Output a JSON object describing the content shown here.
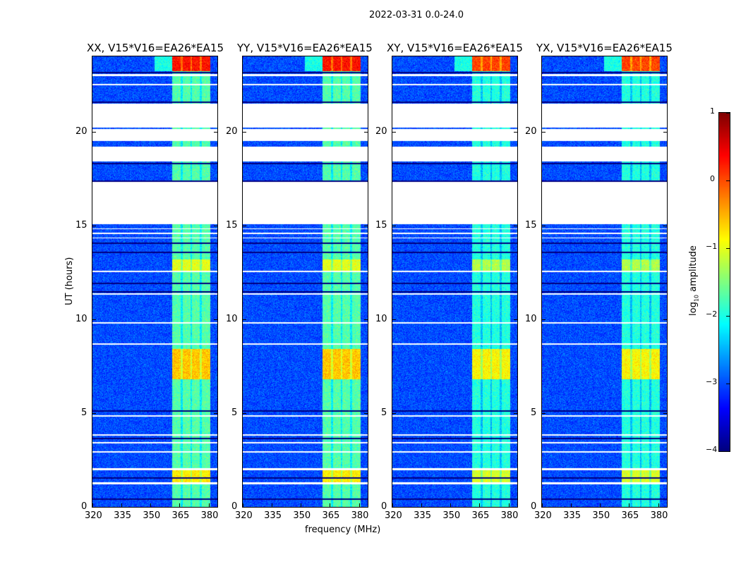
{
  "chart_data": {
    "type": "heatmap",
    "title": "2022-03-31 0.0-24.0",
    "xlabel": "frequency (MHz)",
    "ylabel": "UT (hours)",
    "xlim": [
      320,
      384.5
    ],
    "ylim": [
      0,
      24
    ],
    "xticks": [
      "320",
      "335",
      "350",
      "365",
      "380"
    ],
    "xtick_values": [
      320,
      335,
      350,
      365,
      380
    ],
    "yticks": [
      "0",
      "5",
      "10",
      "15",
      "20"
    ],
    "ytick_values": [
      0,
      5,
      10,
      15,
      20
    ],
    "panels": [
      {
        "title": "XX, V15*V16=EA26*EA15"
      },
      {
        "title": "YY, V15*V16=EA26*EA15"
      },
      {
        "title": "XY, V15*V16=EA26*EA15"
      },
      {
        "title": "YX, V15*V16=EA26*EA15"
      }
    ],
    "colorbar": {
      "label": "log10 amplitude",
      "label_main": "log",
      "label_sub": "10",
      "label_rest": " amplitude",
      "range": [
        -4,
        1
      ],
      "ticks": [
        "1",
        "0",
        "−1",
        "−2",
        "−3",
        "−4"
      ],
      "tick_values": [
        1,
        0,
        -1,
        -2,
        -3,
        -4
      ],
      "colormap": "jet"
    },
    "baseline_log_amp": -3.0,
    "rfi_band_mhz": [
      361,
      381
    ],
    "rfi_subband_edges_mhz": [
      366,
      371,
      376
    ],
    "rfi_levels": [
      {
        "hours": [
          23.2,
          24.0
        ],
        "log_amp": 0.3
      },
      {
        "hours": [
          6.8,
          8.4
        ],
        "log_amp": -0.6
      },
      {
        "hours": [
          1.3,
          2.0
        ],
        "log_amp": -0.8
      },
      {
        "hours": [
          12.6,
          13.2
        ],
        "log_amp": -1.0
      },
      {
        "hours": [
          0.0,
          24.0
        ],
        "log_amp": -1.7
      }
    ],
    "flagged_hours": [
      [
        22.95,
        23.05
      ],
      [
        22.45,
        22.55
      ],
      [
        20.2,
        21.5
      ],
      [
        19.5,
        20.15
      ],
      [
        18.4,
        19.2
      ],
      [
        15.05,
        17.3
      ],
      [
        14.8,
        14.85
      ],
      [
        14.55,
        14.6
      ],
      [
        14.3,
        14.35
      ],
      [
        12.5,
        12.58
      ],
      [
        11.3,
        11.38
      ],
      [
        9.75,
        9.85
      ],
      [
        8.65,
        8.72
      ],
      [
        4.8,
        4.9
      ],
      [
        3.8,
        3.88
      ],
      [
        3.38,
        3.45
      ],
      [
        2.9,
        2.98
      ],
      [
        1.95,
        2.05
      ],
      [
        1.2,
        1.3
      ]
    ],
    "dark_lines_hours": [
      23.15,
      21.55,
      18.3,
      17.35,
      14.05,
      13.55,
      11.9,
      11.45,
      5.1,
      3.65,
      1.55,
      0.4
    ]
  }
}
